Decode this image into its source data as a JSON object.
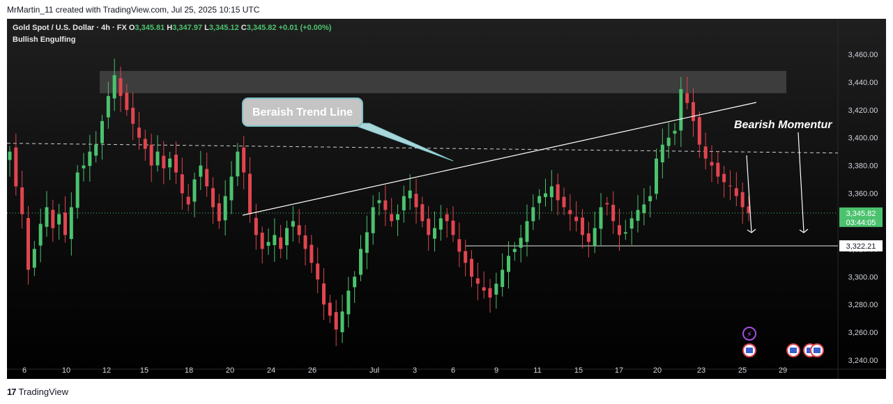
{
  "credit": "MrMartin_11 created with TradingView.com, Jul 25, 2025 10:15 UTC",
  "header": {
    "symbol": "Gold Spot / U.S. Dollar · 4h · FX",
    "o_label": "O",
    "o": "3,345.81",
    "h_label": "H",
    "h": "3,347.97",
    "l_label": "L",
    "l": "3,345.12",
    "c_label": "C",
    "c": "3,345.82",
    "change": "+0.01 (+0.00%)",
    "indicator": "Bullish Engulfing"
  },
  "footer": {
    "brand": "TradingView"
  },
  "colors": {
    "up": "#4cc26e",
    "down": "#e0454f",
    "bg": "#111111",
    "text": "#e8e8e8",
    "zone": "#4a4a4a"
  },
  "chart_data": {
    "type": "candlestick",
    "symbol": "XAUUSD",
    "timeframe": "4h",
    "x_ticks": [
      "6",
      "10",
      "12",
      "15",
      "18",
      "20",
      "24",
      "26",
      "Jul",
      "3",
      "6",
      "9",
      "11",
      "15",
      "17",
      "20",
      "23",
      "25",
      "29"
    ],
    "y_ticks": [
      "3,240.00",
      "3,260.00",
      "3,280.00",
      "3,300.00",
      "3,320.00",
      "3,340.00",
      "3,360.00",
      "3,380.00",
      "3,400.00",
      "3,420.00",
      "3,440.00",
      "3,460.00"
    ],
    "ylim": [
      3235,
      3472
    ],
    "last_price": 3345.82,
    "last_price_label": "3,345.82",
    "countdown": "03:44:05",
    "target_price": 3322.21,
    "target_label": "3,322.21",
    "annotations": {
      "trend_line_label": "Beraish Trend Line",
      "momentum_label": "Bearish Momentur"
    },
    "resistance_zone": [
      3432,
      3448
    ],
    "dashed_level": 3390,
    "trend_line": {
      "from": {
        "x": "Jun 22",
        "y": 3336
      },
      "to": {
        "x": "Jul 26",
        "y": 3416
      }
    },
    "candles_close_path": [
      3390,
      3365,
      3345,
      3305,
      3320,
      3338,
      3350,
      3335,
      3345,
      3330,
      3350,
      3375,
      3380,
      3390,
      3395,
      3412,
      3430,
      3445,
      3430,
      3420,
      3410,
      3400,
      3392,
      3380,
      3390,
      3378,
      3385,
      3375,
      3360,
      3352,
      3370,
      3380,
      3365,
      3350,
      3340,
      3358,
      3372,
      3390,
      3375,
      3345,
      3330,
      3320,
      3325,
      3330,
      3320,
      3335,
      3340,
      3330,
      3320,
      3310,
      3298,
      3280,
      3272,
      3262,
      3275,
      3290,
      3300,
      3320,
      3332,
      3350,
      3355,
      3348,
      3340,
      3345,
      3358,
      3362,
      3350,
      3340,
      3330,
      3335,
      3342,
      3340,
      3330,
      3318,
      3310,
      3300,
      3295,
      3290,
      3285,
      3295,
      3305,
      3315,
      3320,
      3328,
      3340,
      3350,
      3358,
      3360,
      3365,
      3355,
      3350,
      3345,
      3340,
      3330,
      3325,
      3335,
      3350,
      3352,
      3340,
      3330,
      3332,
      3342,
      3348,
      3352,
      3358,
      3385,
      3395,
      3400,
      3405,
      3435,
      3425,
      3412,
      3395,
      3385,
      3380,
      3372,
      3368,
      3365,
      3358,
      3350,
      3345.82
    ]
  }
}
